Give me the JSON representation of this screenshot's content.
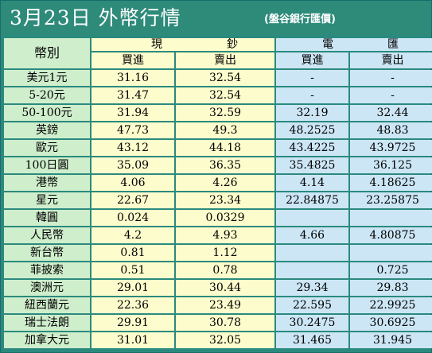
{
  "title": "3月23日 外幣行情",
  "subtitle": "(盤谷銀行匯價)",
  "corner_label": "幣別",
  "group_cash": {
    "left": "現",
    "right": "鈔"
  },
  "group_transfer": {
    "left": "電",
    "right": "匯"
  },
  "columns": {
    "buy": "買進",
    "sell": "賣出"
  },
  "rows": [
    {
      "name": "美元1元",
      "cash_buy": "31.16",
      "cash_sell": "32.54",
      "tt_buy": "-",
      "tt_sell": "-"
    },
    {
      "name": "5-20元",
      "cash_buy": "31.47",
      "cash_sell": "32.54",
      "tt_buy": "-",
      "tt_sell": "-"
    },
    {
      "name": "50-100元",
      "cash_buy": "31.94",
      "cash_sell": "32.59",
      "tt_buy": "32.19",
      "tt_sell": "32.44"
    },
    {
      "name": "英鎊",
      "cash_buy": "47.73",
      "cash_sell": "49.3",
      "tt_buy": "48.2525",
      "tt_sell": "48.83"
    },
    {
      "name": "歐元",
      "cash_buy": "43.12",
      "cash_sell": "44.18",
      "tt_buy": "43.4225",
      "tt_sell": "43.9725"
    },
    {
      "name": "100日圓",
      "cash_buy": "35.09",
      "cash_sell": "36.35",
      "tt_buy": "35.4825",
      "tt_sell": "36.125"
    },
    {
      "name": "港幣",
      "cash_buy": "4.06",
      "cash_sell": "4.26",
      "tt_buy": "4.14",
      "tt_sell": "4.18625"
    },
    {
      "name": "星元",
      "cash_buy": "22.67",
      "cash_sell": "23.34",
      "tt_buy": "22.84875",
      "tt_sell": "23.25875"
    },
    {
      "name": "韓圓",
      "cash_buy": "0.024",
      "cash_sell": "0.0329",
      "tt_buy": "",
      "tt_sell": ""
    },
    {
      "name": "人民幣",
      "cash_buy": "4.2",
      "cash_sell": "4.93",
      "tt_buy": "4.66",
      "tt_sell": "4.80875"
    },
    {
      "name": "新台幣",
      "cash_buy": "0.81",
      "cash_sell": "1.12",
      "tt_buy": "",
      "tt_sell": ""
    },
    {
      "name": "菲披索",
      "cash_buy": "0.51",
      "cash_sell": "0.78",
      "tt_buy": "",
      "tt_sell": "0.725"
    },
    {
      "name": "澳洲元",
      "cash_buy": "29.01",
      "cash_sell": "30.44",
      "tt_buy": "29.34",
      "tt_sell": "29.83"
    },
    {
      "name": "紐西蘭元",
      "cash_buy": "22.36",
      "cash_sell": "23.49",
      "tt_buy": "22.595",
      "tt_sell": "22.9925"
    },
    {
      "name": "瑞士法朗",
      "cash_buy": "29.91",
      "cash_sell": "30.78",
      "tt_buy": "30.2475",
      "tt_sell": "30.6925"
    },
    {
      "name": "加拿大元",
      "cash_buy": "31.01",
      "cash_sell": "32.05",
      "tt_buy": "31.465",
      "tt_sell": "31.945"
    }
  ],
  "colors": {
    "header_bg": "#2e8b7a",
    "name_col": "#cfeecc",
    "cash_cols": "#fdfccc",
    "transfer_cols": "#cce6f5"
  }
}
